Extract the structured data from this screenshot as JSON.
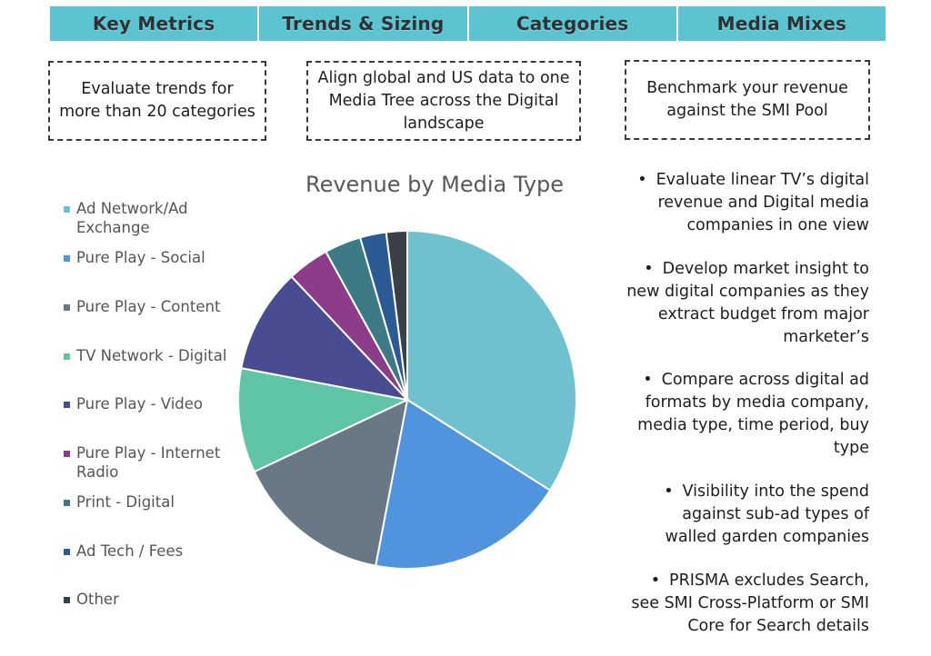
{
  "tabs": [
    "Key Metrics",
    "Trends & Sizing",
    "Categories",
    "Media Mixes"
  ],
  "boxes": [
    "Evaluate trends for more than 20 categories",
    "Align global and US data to one Media Tree across the Digital landscape",
    "Benchmark your revenue against the SMI Pool"
  ],
  "chart_data": {
    "type": "pie",
    "title": "Revenue by Media Type",
    "categories": [
      "Ad Network/Ad Exchange",
      "Pure Play - Social",
      "Pure Play - Content",
      "TV Network - Digital",
      "Pure Play - Video",
      "Pure Play - Internet Radio",
      "Print - Digital",
      "Ad Tech / Fees",
      "Other"
    ],
    "values": [
      34,
      19,
      15,
      10,
      10,
      4,
      3.5,
      2.5,
      2
    ],
    "colors": [
      "#6fc1cf",
      "#4f94dc",
      "#6a7784",
      "#5fc5a6",
      "#4a4c92",
      "#8c3c88",
      "#3c7b85",
      "#2c5a95",
      "#3a4048"
    ],
    "legend": "left"
  },
  "bullets": [
    "Evaluate linear TV’s digital revenue and Digital media companies in one view",
    "Develop market insight to new digital companies as they extract budget from major marketer’s",
    "Compare across digital ad formats by media company, media type, time period, buy type",
    "Visibility into the spend against sub-ad types of walled garden companies",
    "PRISMA excludes Search, see SMI Cross-Platform or SMI Core for Search details"
  ]
}
